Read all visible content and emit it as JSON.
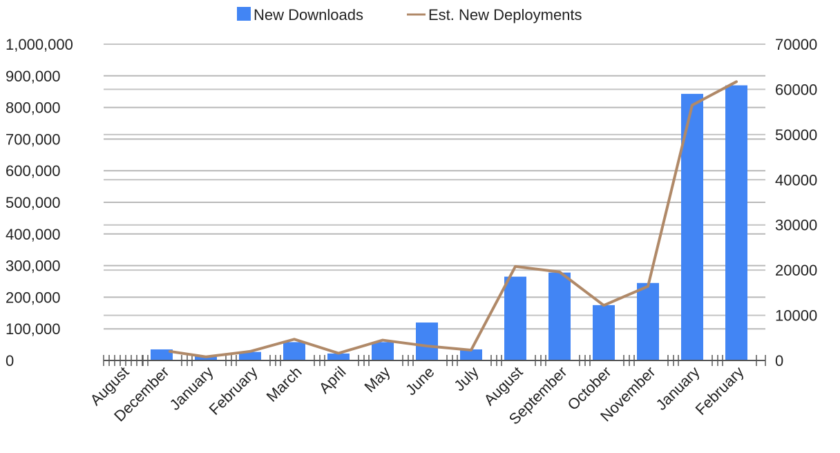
{
  "chart_data": {
    "type": "bar",
    "categories": [
      "August",
      "December",
      "January",
      "February",
      "March",
      "April",
      "May",
      "June",
      "July",
      "August",
      "September",
      "October",
      "November",
      "January",
      "February"
    ],
    "series": [
      {
        "name": "New Downloads",
        "type": "bar",
        "axis": "left",
        "color": "#4285f4",
        "values": [
          0,
          35000,
          12000,
          27000,
          58000,
          22000,
          58000,
          120000,
          35000,
          265000,
          278000,
          175000,
          245000,
          843000,
          870000
        ]
      },
      {
        "name": "Est. New Deployments",
        "type": "line",
        "axis": "right",
        "color": "#b08968",
        "values": [
          null,
          2000,
          800,
          2000,
          4700,
          1600,
          4500,
          3200,
          2300,
          20800,
          19600,
          12200,
          16400,
          56500,
          61700
        ]
      }
    ],
    "y_left": {
      "ylim": [
        0,
        1000000
      ],
      "ticks": [
        "0",
        "100,000",
        "200,000",
        "300,000",
        "400,000",
        "500,000",
        "600,000",
        "700,000",
        "800,000",
        "900,000",
        "1,000,000"
      ]
    },
    "y_right": {
      "ylim": [
        0,
        70000
      ],
      "ticks": [
        "0",
        "10000",
        "20000",
        "30000",
        "40000",
        "50000",
        "60000",
        "70000"
      ]
    },
    "legend_position": "top-center",
    "grid": true
  }
}
